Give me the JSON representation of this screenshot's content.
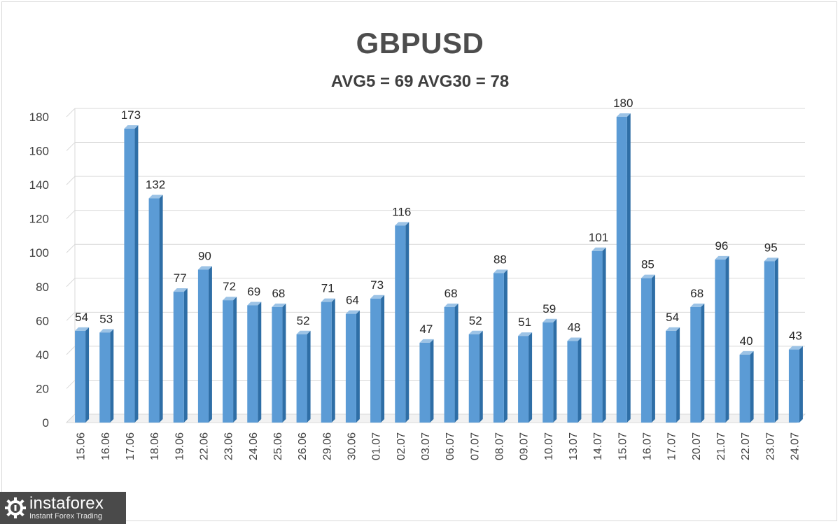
{
  "chart_data": {
    "type": "bar",
    "title": "GBPUSD",
    "subtitle": "AVG5 = 69 AVG30 = 78",
    "categories": [
      "15.06",
      "16.06",
      "17.06",
      "18.06",
      "19.06",
      "22.06",
      "23.06",
      "24.06",
      "25.06",
      "26.06",
      "29.06",
      "30.06",
      "01.07",
      "02.07",
      "03.07",
      "06.07",
      "07.07",
      "08.07",
      "09.07",
      "10.07",
      "13.07",
      "14.07",
      "15.07",
      "16.07",
      "17.07",
      "20.07",
      "21.07",
      "22.07",
      "23.07",
      "24.07"
    ],
    "values": [
      54,
      53,
      173,
      132,
      77,
      90,
      72,
      69,
      68,
      52,
      71,
      64,
      73,
      116,
      47,
      68,
      52,
      88,
      51,
      59,
      48,
      101,
      180,
      85,
      54,
      68,
      96,
      40,
      95,
      43
    ],
    "ylim": [
      0,
      180
    ],
    "yticks": [
      0,
      20,
      40,
      60,
      80,
      100,
      120,
      140,
      160,
      180
    ],
    "grid": true,
    "data_labels": true,
    "colors": {
      "bar_front": "#5b9bd5",
      "bar_side": "#2e6ea6",
      "bar_top": "#9cc3e6",
      "grid": "#d9d9d9"
    }
  },
  "watermark": {
    "name": "instaforex",
    "tagline": "Instant Forex Trading"
  }
}
